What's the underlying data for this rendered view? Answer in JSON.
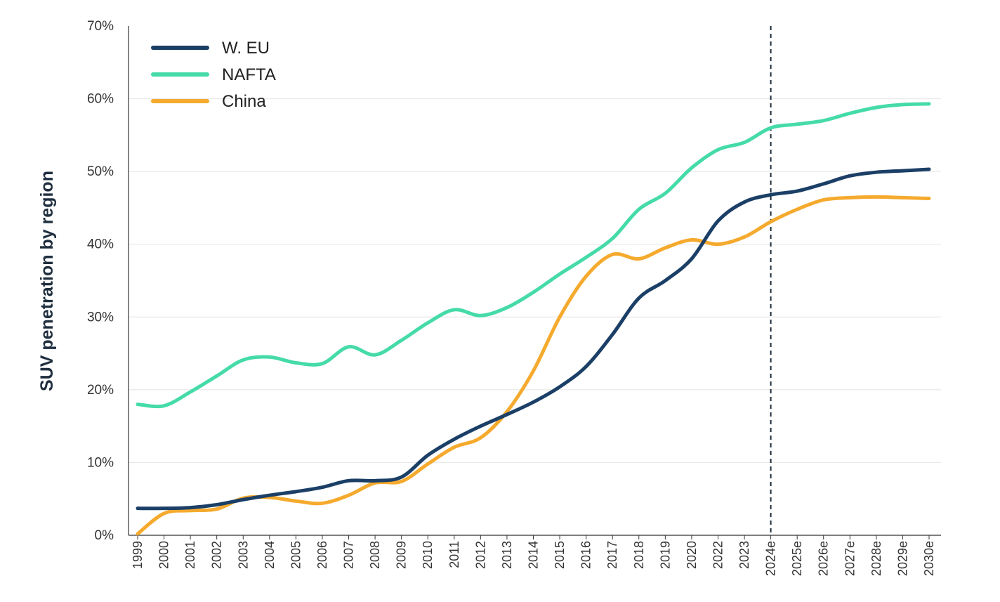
{
  "chart_data": {
    "type": "line",
    "title": "",
    "ylabel": "SUV penetration by region",
    "xlabel": "",
    "ylim": [
      0,
      70
    ],
    "yticks": [
      0,
      10,
      20,
      30,
      40,
      50,
      60,
      70
    ],
    "ytick_labels": [
      "0%",
      "10%",
      "20%",
      "30%",
      "40%",
      "50%",
      "60%",
      "70%"
    ],
    "categories": [
      "1999",
      "2000",
      "2001",
      "2002",
      "2003",
      "2004",
      "2005",
      "2006",
      "2007",
      "2008",
      "2009",
      "2010",
      "2011",
      "2012",
      "2013",
      "2014",
      "2015",
      "2016",
      "2017",
      "2018",
      "2019",
      "2020",
      "2022",
      "2023",
      "2024e",
      "2025e",
      "2026e",
      "2027e",
      "2028e",
      "2029e",
      "2030e"
    ],
    "forecast_marker_at": "2024e",
    "grid": "horizontal",
    "legend_position": "top-left",
    "series": [
      {
        "name": "W. EU",
        "color": "#1b3f66",
        "values": [
          3.7,
          3.7,
          3.8,
          4.2,
          4.9,
          5.5,
          6.0,
          6.6,
          7.5,
          7.5,
          8.0,
          11.0,
          13.2,
          15.0,
          16.6,
          18.3,
          20.4,
          23.2,
          27.6,
          32.6,
          35.0,
          38.0,
          43.2,
          45.8,
          46.8,
          47.3,
          48.3,
          49.4,
          49.9,
          50.1,
          50.3
        ]
      },
      {
        "name": "NAFTA",
        "color": "#45dba8",
        "values": [
          18.0,
          17.8,
          19.7,
          21.9,
          24.1,
          24.5,
          23.7,
          23.6,
          25.9,
          24.8,
          26.8,
          29.2,
          31.0,
          30.2,
          31.3,
          33.4,
          35.9,
          38.2,
          40.8,
          44.8,
          47.0,
          50.5,
          53.0,
          54.0,
          56.0,
          56.5,
          57.0,
          58.0,
          58.8,
          59.2,
          59.3
        ]
      },
      {
        "name": "China",
        "color": "#f5aa2e",
        "values": [
          0.2,
          3.0,
          3.4,
          3.6,
          5.1,
          5.2,
          4.7,
          4.4,
          5.5,
          7.2,
          7.4,
          9.8,
          12.1,
          13.4,
          17.0,
          22.6,
          30.0,
          35.6,
          38.6,
          38.0,
          39.5,
          40.6,
          40.0,
          41.0,
          43.1,
          44.8,
          46.1,
          46.4,
          46.5,
          46.4,
          46.3
        ]
      }
    ]
  }
}
